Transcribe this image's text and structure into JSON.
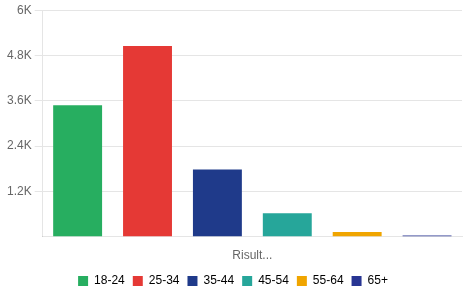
{
  "chart_data": {
    "type": "bar",
    "categories": [
      "18-24",
      "25-34",
      "35-44",
      "45-54",
      "55-64",
      "65+"
    ],
    "values": [
      3480,
      5050,
      1780,
      620,
      120,
      30
    ],
    "colors": [
      "#27ae60",
      "#e53935",
      "#1f3a8a",
      "#26a69a",
      "#f0a500",
      "#283593"
    ],
    "xlabel": "Risult...",
    "ylim": [
      0,
      6000
    ],
    "yticks": [
      {
        "value": 1200,
        "label": "1.2K"
      },
      {
        "value": 2400,
        "label": "2.4K"
      },
      {
        "value": 3600,
        "label": "3.6K"
      },
      {
        "value": 4800,
        "label": "4.8K"
      },
      {
        "value": 6000,
        "label": "6K"
      }
    ],
    "grid": true,
    "legend": "bottom",
    "tick_labels": "y"
  }
}
